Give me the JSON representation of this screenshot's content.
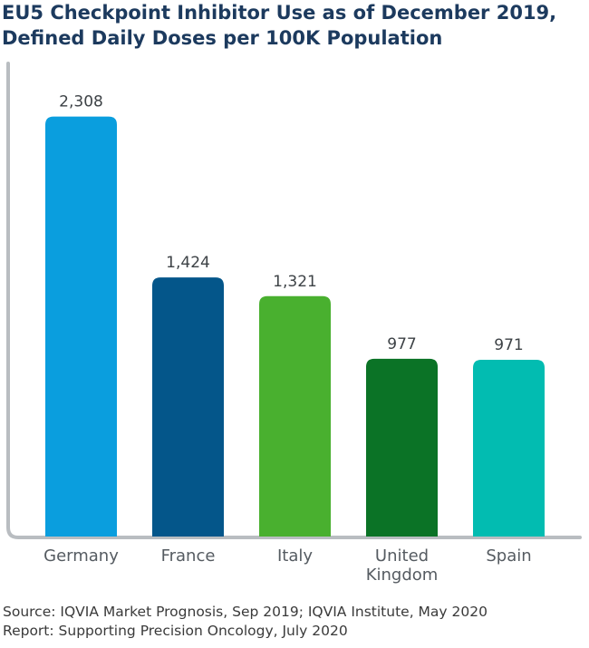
{
  "chart_data": {
    "type": "bar",
    "title": [
      "EU5 Checkpoint Inhibitor Use as of December 2019,",
      "Defined Daily Doses per 100K Population"
    ],
    "categories": [
      [
        "Germany"
      ],
      [
        "France"
      ],
      [
        "Italy"
      ],
      [
        "United",
        "Kingdom"
      ],
      [
        "Spain"
      ]
    ],
    "values": [
      2308,
      1424,
      1321,
      977,
      971
    ],
    "value_labels": [
      "2,308",
      "1,424",
      "1,321",
      "977",
      "971"
    ],
    "colors": [
      "#0a9ede",
      "#04568a",
      "#49b02f",
      "#0b7326",
      "#02bcb1"
    ],
    "axis_color": "#b9bdc1",
    "label_color": "#555b61",
    "ylim": [
      0,
      2600
    ],
    "grid": false,
    "legend": "none"
  },
  "footer": {
    "source": "Source: IQVIA Market Prognosis, Sep 2019; IQVIA Institute, May 2020",
    "report": "Report: Supporting Precision Oncology, July 2020"
  }
}
